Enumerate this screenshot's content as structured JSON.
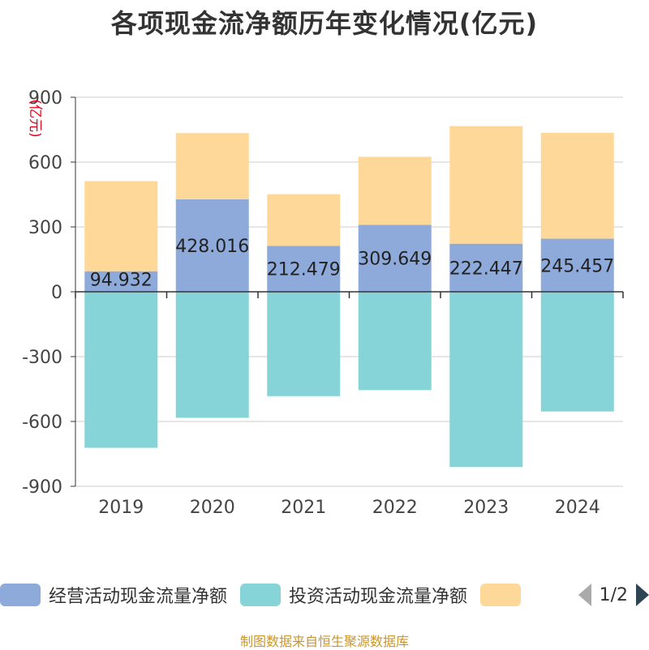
{
  "chart_data": {
    "type": "bar",
    "stacked": true,
    "title": "各项现金流净额历年变化情况(亿元)",
    "ylabel": "(亿元)",
    "ylim": [
      -900,
      900
    ],
    "yticks": [
      900,
      600,
      300,
      0,
      -300,
      -600,
      -900
    ],
    "categories": [
      "2019",
      "2020",
      "2021",
      "2022",
      "2023",
      "2024"
    ],
    "series": [
      {
        "name": "经营活动现金流量净额",
        "color": "#8eaadb",
        "values": [
          94.932,
          428.016,
          212.479,
          309.649,
          222.447,
          245.457
        ],
        "labels": [
          "94.932",
          "428.016",
          "212.479",
          "309.649",
          "222.447",
          "245.457"
        ]
      },
      {
        "name": "投资活动现金流量净额",
        "color": "#86d4d8",
        "values": [
          -722,
          -583,
          -483,
          -455,
          -811,
          -554
        ]
      },
      {
        "name": "",
        "color": "#fed899",
        "values": [
          417,
          306,
          239,
          315,
          544,
          490
        ]
      }
    ]
  },
  "legend": {
    "items": [
      "经营活动现金流量净额",
      "投资活动现金流量净额",
      ""
    ],
    "page": "1/2"
  },
  "footer": {
    "source": "制图数据来自恒生聚源数据库"
  }
}
